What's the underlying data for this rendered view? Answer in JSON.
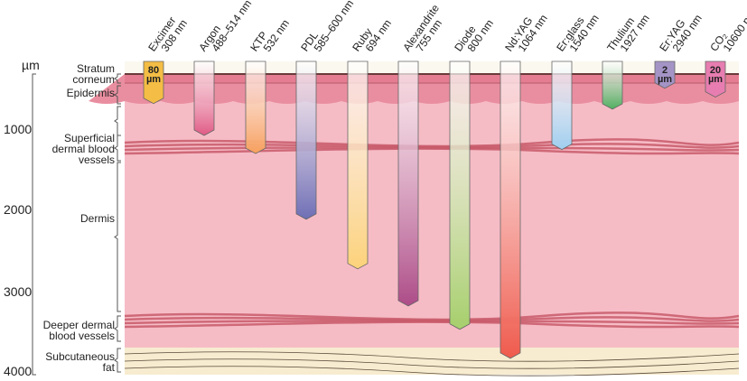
{
  "axis": {
    "unit": "µm",
    "ticks": [
      "1000",
      "2000",
      "3000",
      "4000"
    ],
    "tick_values": [
      1000,
      2000,
      3000,
      4000
    ]
  },
  "layers": [
    {
      "label": "Stratum corneum"
    },
    {
      "label": "Epidermis"
    },
    {
      "label": "Superficial dermal blood vessels"
    },
    {
      "label": "Dermis"
    },
    {
      "label": "Deeper dermal blood vessels"
    },
    {
      "label": "Subcutaneous fat"
    }
  ],
  "lasers": [
    {
      "name": "Excimer",
      "wavelength": "308 nm",
      "depth_um": 680,
      "color": "#f4bd45",
      "badge": "80 µm"
    },
    {
      "name": "Argon",
      "wavelength": "488–514 nm",
      "depth_um": 1075,
      "color": "#e05a85"
    },
    {
      "name": "KTP",
      "wavelength": "532 nm",
      "depth_um": 1300,
      "color": "#f7a05e"
    },
    {
      "name": "PDL",
      "wavelength": "585–600 nm",
      "depth_um": 2115,
      "color": "#6e6eb5"
    },
    {
      "name": "Ruby",
      "wavelength": "694 nm",
      "depth_um": 2730,
      "color": "#fcd27a"
    },
    {
      "name": "Alexandrite",
      "wavelength": "755 nm",
      "depth_um": 3190,
      "color": "#ad4c88"
    },
    {
      "name": "Diode",
      "wavelength": "800 nm",
      "depth_um": 3480,
      "color": "#a6cf6c"
    },
    {
      "name": "Nd:YAG",
      "wavelength": "1064 nm",
      "depth_um": 3840,
      "color": "#ef5a4c"
    },
    {
      "name": "Er:glass",
      "wavelength": "1540 nm",
      "depth_um": 1250,
      "color": "#9fcff0"
    },
    {
      "name": "Thulium",
      "wavelength": "1927 nm",
      "depth_um": 750,
      "color": "#4fae5e"
    },
    {
      "name": "Er:YAG",
      "wavelength": "2940 nm",
      "depth_um": 490,
      "color": "#a494c6",
      "badge": "2 µm"
    },
    {
      "name": "CO₂",
      "wavelength": "10600 nm",
      "depth_um": 600,
      "color": "#e77db0",
      "badge": "20 µm"
    }
  ],
  "colors": {
    "epidermis": "#e98ea0",
    "dermis": "#f6bcc6",
    "fat": "#f7ecd0",
    "vessel": "#c85a6a"
  }
}
